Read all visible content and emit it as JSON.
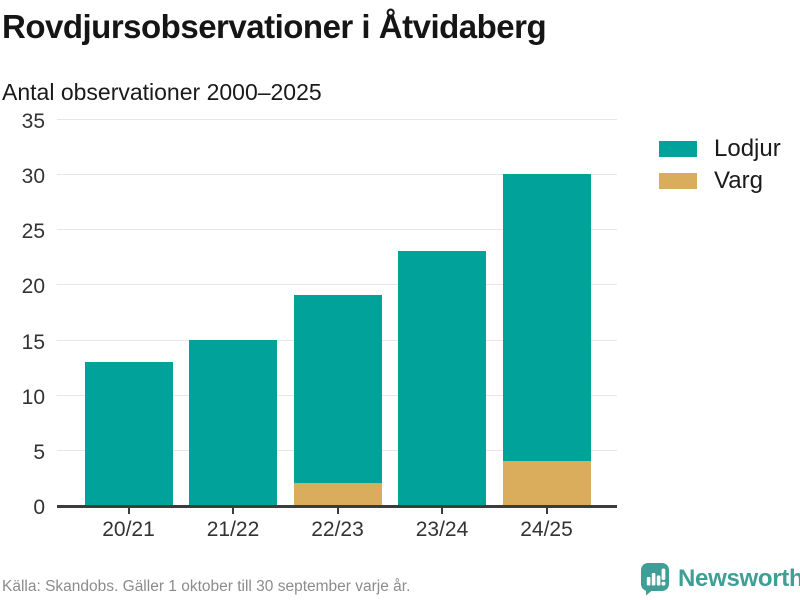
{
  "page": {
    "title": "Rovdjursobservationer i Åtvidaberg",
    "subtitle": "Antal observationer 2000–2025",
    "footer": "Källa: Skandobs. Gäller 1 oktober till 30 september varje år.",
    "brand": {
      "name": "Newsworthy",
      "icon": "bar-chart-speech-bubble-icon",
      "color": "#3F9E96"
    }
  },
  "colors": {
    "lodjur": "#00A29A",
    "varg": "#D9AD5C",
    "axis": "#3C3C3C",
    "grid": "#E6E6E6",
    "label": "#333333",
    "muted": "#8C8C8C"
  },
  "chart_data": {
    "type": "bar",
    "stacked": true,
    "title": "Rovdjursobservationer i Åtvidaberg",
    "subtitle": "Antal observationer 2000–2025",
    "categories": [
      "20/21",
      "21/22",
      "22/23",
      "23/24",
      "24/25"
    ],
    "series": [
      {
        "name": "Varg",
        "color": "#D9AD5C",
        "values": [
          0,
          0,
          2,
          0,
          4
        ]
      },
      {
        "name": "Lodjur",
        "color": "#00A29A",
        "values": [
          13,
          15,
          17,
          23,
          26
        ]
      }
    ],
    "totals": [
      13,
      15,
      19,
      23,
      30
    ],
    "xlabel": "",
    "ylabel": "",
    "ylim": [
      0,
      35
    ],
    "yticks": [
      0,
      5,
      10,
      15,
      20,
      25,
      30,
      35
    ],
    "grid": true,
    "legend": {
      "position": "top-right",
      "entries": [
        "Lodjur",
        "Varg"
      ]
    }
  }
}
